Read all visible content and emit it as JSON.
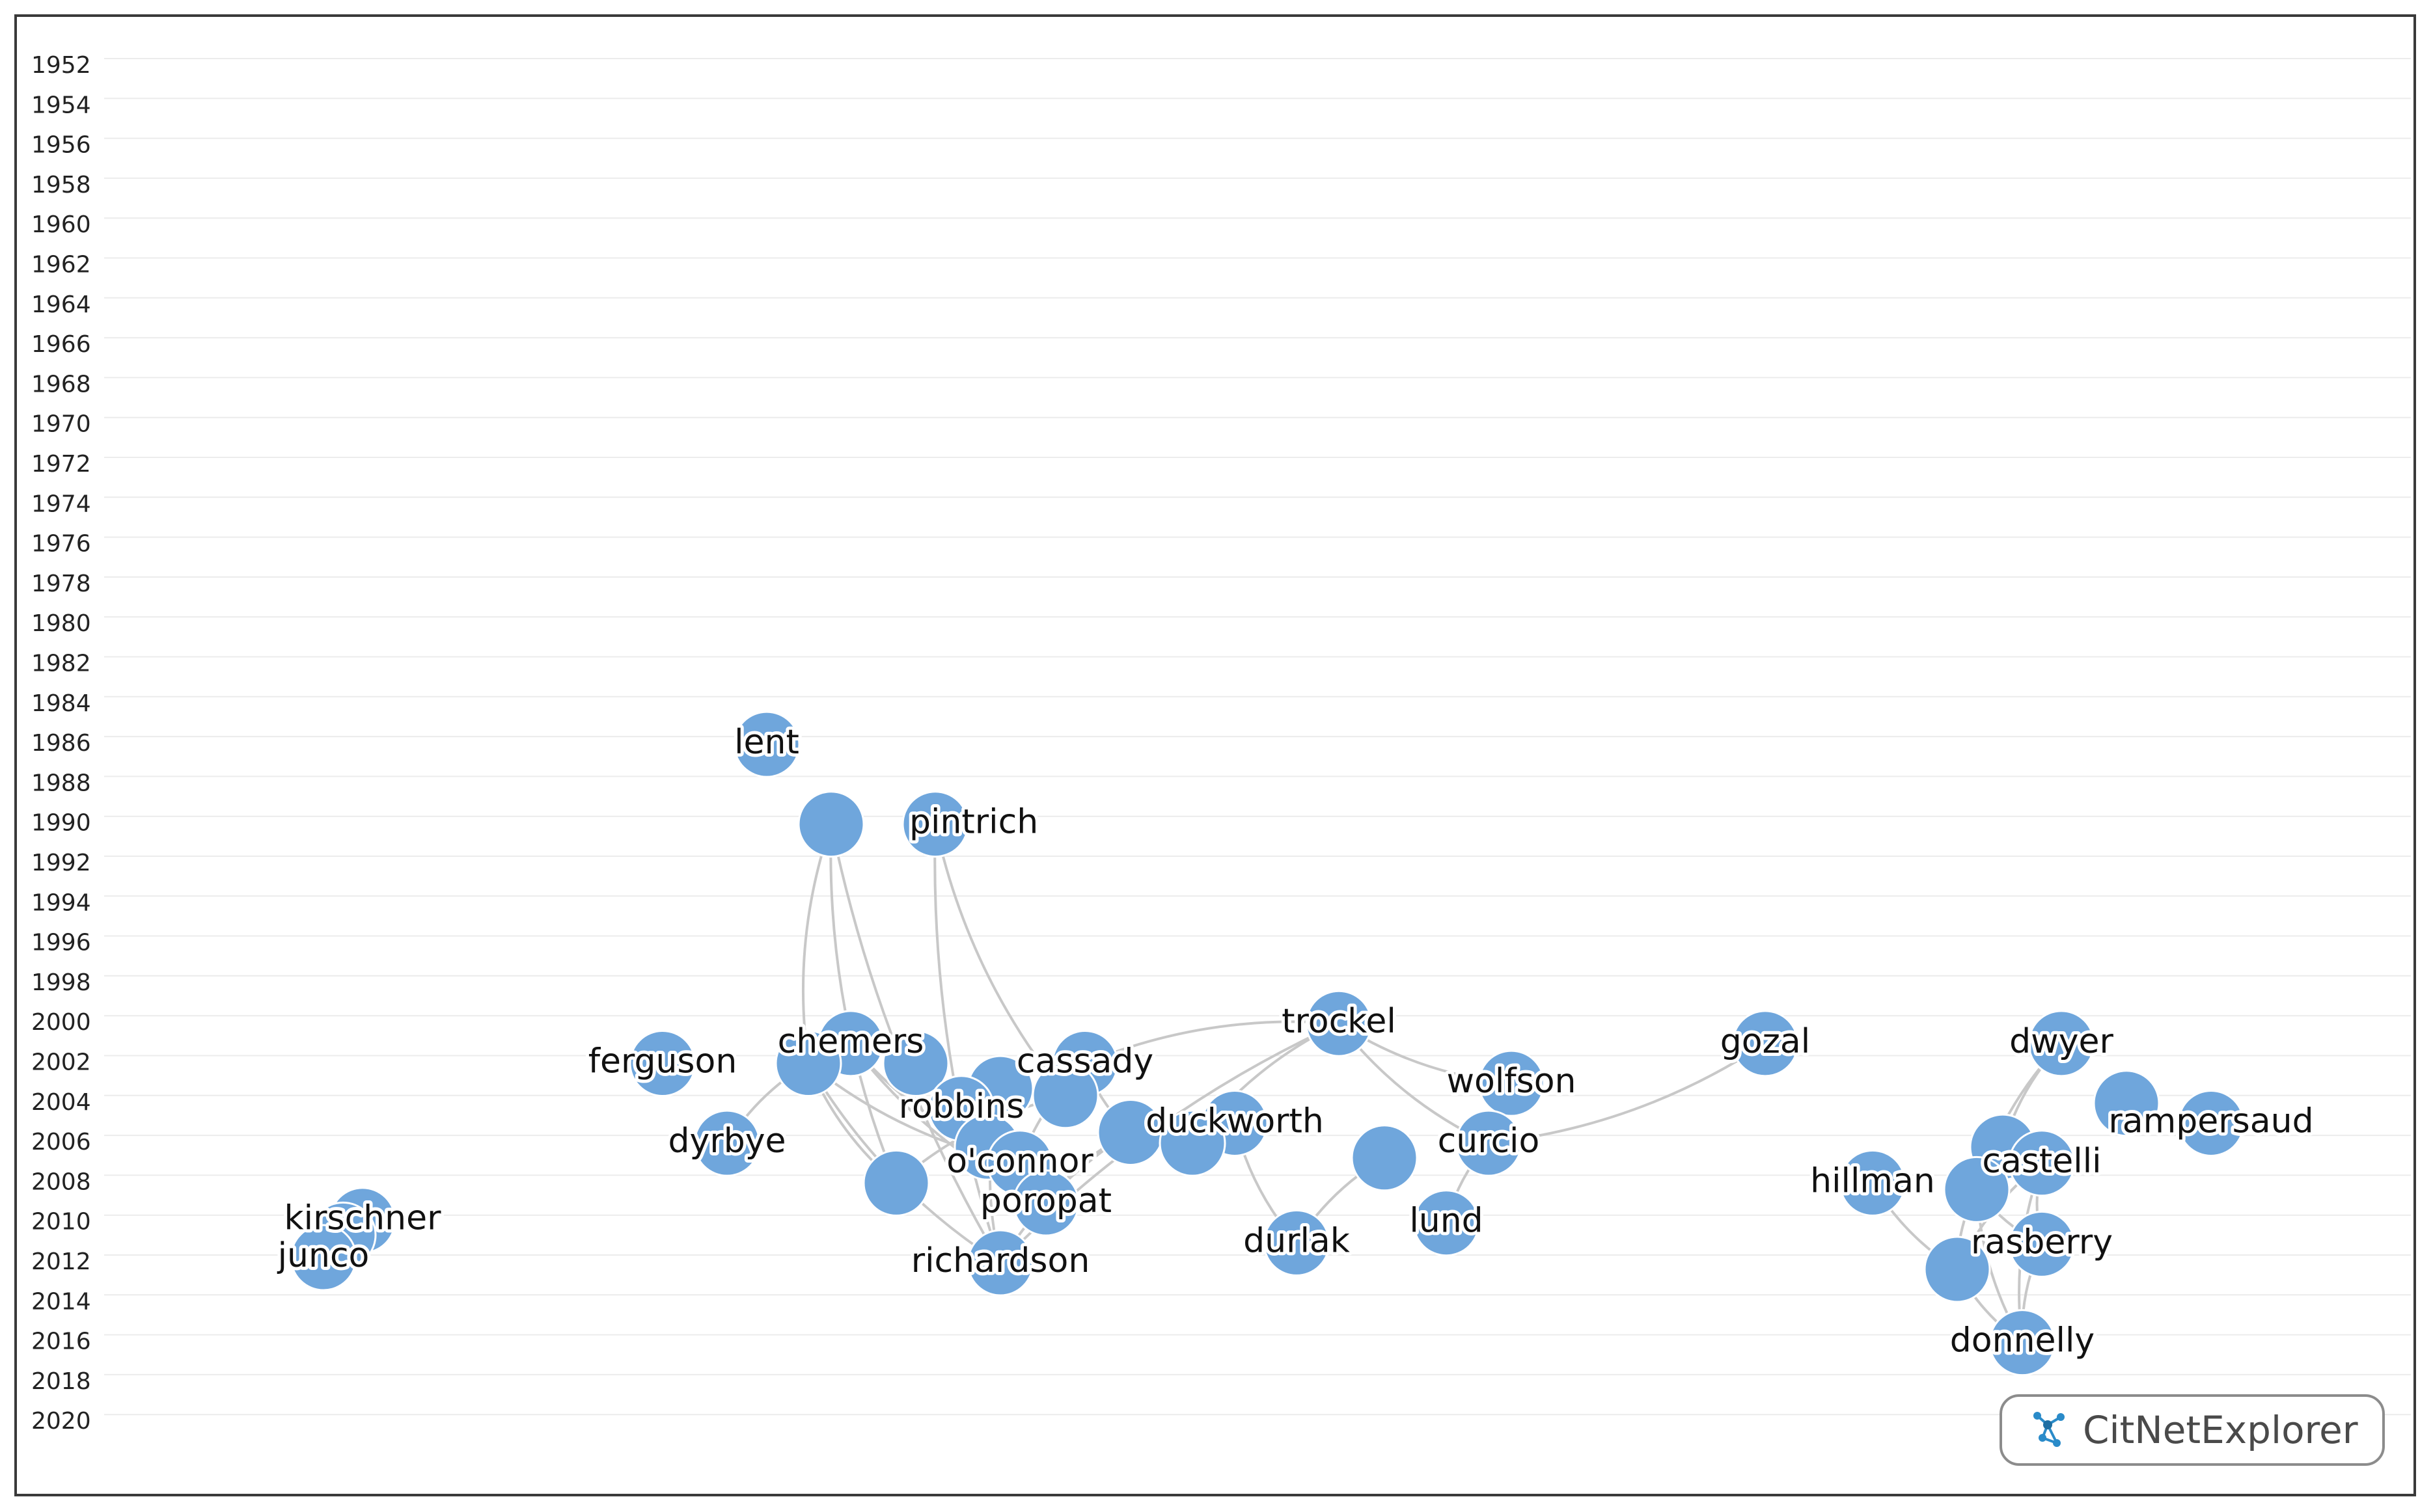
{
  "year_axis": {
    "labels": [
      "1952",
      "1954",
      "1956",
      "1958",
      "1960",
      "1962",
      "1964",
      "1966",
      "1968",
      "1970",
      "1972",
      "1974",
      "1976",
      "1978",
      "1980",
      "1982",
      "1984",
      "1986",
      "1988",
      "1990",
      "1992",
      "1994",
      "1996",
      "1998",
      "2000",
      "2002",
      "2004",
      "2006",
      "2008",
      "2010",
      "2012",
      "2014",
      "2016",
      "2018",
      "2020"
    ]
  },
  "nodes": [
    {
      "id": "lent",
      "year": 1986,
      "label": "lent"
    },
    {
      "id": "pintrich-a",
      "year": 1990,
      "label": ""
    },
    {
      "id": "pintrich",
      "year": 1990,
      "label": "pintrich"
    },
    {
      "id": "chemers",
      "year": 2001,
      "label": "chemers"
    },
    {
      "id": "ferguson",
      "year": 2002,
      "label": "ferguson"
    },
    {
      "id": "chemers-b",
      "year": 2002,
      "label": ""
    },
    {
      "id": "n-2002-c",
      "year": 2002,
      "label": ""
    },
    {
      "id": "n-2003-a",
      "year": 2003,
      "label": ""
    },
    {
      "id": "cassady",
      "year": 2002,
      "label": "cassady"
    },
    {
      "id": "robbins",
      "year": 2004,
      "label": "robbins"
    },
    {
      "id": "n-2004-a",
      "year": 2004,
      "label": ""
    },
    {
      "id": "n-2005-a",
      "year": 2005,
      "label": ""
    },
    {
      "id": "duckworth",
      "year": 2005,
      "label": "duckworth"
    },
    {
      "id": "n-2006-a",
      "year": 2006,
      "label": ""
    },
    {
      "id": "dyrbye",
      "year": 2006,
      "label": "dyrbye"
    },
    {
      "id": "n-2006-b",
      "year": 2006,
      "label": ""
    },
    {
      "id": "oconnor",
      "year": 2007,
      "label": "o'connor"
    },
    {
      "id": "n-2008-a",
      "year": 2008,
      "label": ""
    },
    {
      "id": "poropat",
      "year": 2009,
      "label": "poropat"
    },
    {
      "id": "richardson",
      "year": 2012,
      "label": "richardson"
    },
    {
      "id": "trockel",
      "year": 2000,
      "label": "trockel"
    },
    {
      "id": "wolfson",
      "year": 2003,
      "label": "wolfson"
    },
    {
      "id": "curcio",
      "year": 2006,
      "label": "curcio"
    },
    {
      "id": "n-2007-b",
      "year": 2007,
      "label": ""
    },
    {
      "id": "lund",
      "year": 2010,
      "label": "lund"
    },
    {
      "id": "durlak",
      "year": 2011,
      "label": "durlak"
    },
    {
      "id": "gozal",
      "year": 2001,
      "label": "gozal"
    },
    {
      "id": "dwyer",
      "year": 2001,
      "label": "dwyer"
    },
    {
      "id": "n-2004-b",
      "year": 2004,
      "label": ""
    },
    {
      "id": "rampersaud",
      "year": 2005,
      "label": "rampersaud"
    },
    {
      "id": "n-2006-c",
      "year": 2006,
      "label": ""
    },
    {
      "id": "castelli",
      "year": 2007,
      "label": "castelli"
    },
    {
      "id": "hillman",
      "year": 2008,
      "label": "hillman"
    },
    {
      "id": "n-2008-b",
      "year": 2008,
      "label": ""
    },
    {
      "id": "rasberry",
      "year": 2011,
      "label": "rasberry"
    },
    {
      "id": "n-2012-a",
      "year": 2012,
      "label": ""
    },
    {
      "id": "donnelly",
      "year": 2016,
      "label": "donnelly"
    },
    {
      "id": "kirschner",
      "year": 2010,
      "label": "kirschner"
    },
    {
      "id": "n-2011-a",
      "year": 2011,
      "label": ""
    },
    {
      "id": "junco",
      "year": 2012,
      "label": "junco"
    }
  ],
  "edges": [
    [
      "pintrich-a",
      "chemers-b"
    ],
    [
      "pintrich-a",
      "n-2008-a"
    ],
    [
      "pintrich-a",
      "richardson"
    ],
    [
      "pintrich",
      "n-2004-a"
    ],
    [
      "pintrich",
      "richardson"
    ],
    [
      "chemers-b",
      "dyrbye"
    ],
    [
      "chemers-b",
      "oconnor"
    ],
    [
      "chemers-b",
      "n-2008-a"
    ],
    [
      "chemers-b",
      "richardson"
    ],
    [
      "chemers",
      "n-2006-b"
    ],
    [
      "chemers",
      "poropat"
    ],
    [
      "n-2002-c",
      "oconnor"
    ],
    [
      "cassady",
      "n-2005-a"
    ],
    [
      "cassady",
      "oconnor"
    ],
    [
      "n-2003-a",
      "richardson"
    ],
    [
      "robbins",
      "poropat"
    ],
    [
      "n-2004-a",
      "n-2008-a"
    ],
    [
      "n-2005-a",
      "poropat"
    ],
    [
      "n-2005-a",
      "richardson"
    ],
    [
      "trockel",
      "cassady"
    ],
    [
      "trockel",
      "n-2006-a"
    ],
    [
      "trockel",
      "richardson"
    ],
    [
      "trockel",
      "wolfson"
    ],
    [
      "trockel",
      "curcio"
    ],
    [
      "curcio",
      "gozal"
    ],
    [
      "curcio",
      "lund"
    ],
    [
      "n-2007-b",
      "durlak"
    ],
    [
      "duckworth",
      "durlak"
    ],
    [
      "dwyer",
      "n-2006-c"
    ],
    [
      "dwyer",
      "n-2008-b"
    ],
    [
      "n-2006-c",
      "n-2008-b"
    ],
    [
      "castelli",
      "n-2008-b"
    ],
    [
      "castelli",
      "rasberry"
    ],
    [
      "castelli",
      "n-2012-a"
    ],
    [
      "hillman",
      "n-2012-a"
    ],
    [
      "n-2008-b",
      "n-2012-a"
    ],
    [
      "n-2008-b",
      "donnelly"
    ],
    [
      "n-2008-b",
      "rasberry"
    ],
    [
      "rasberry",
      "donnelly"
    ],
    [
      "n-2012-a",
      "donnelly"
    ],
    [
      "castelli",
      "donnelly"
    ],
    [
      "kirschner",
      "n-2011-a"
    ],
    [
      "n-2011-a",
      "junco"
    ]
  ],
  "brand": {
    "text": "CitNetExplorer",
    "icon": "network-logo-icon",
    "accent": "#2a8bc9"
  },
  "colors": {
    "node_fill": "#6fa6dc",
    "edge": "#c8c8c8",
    "grid": "#ececec"
  }
}
